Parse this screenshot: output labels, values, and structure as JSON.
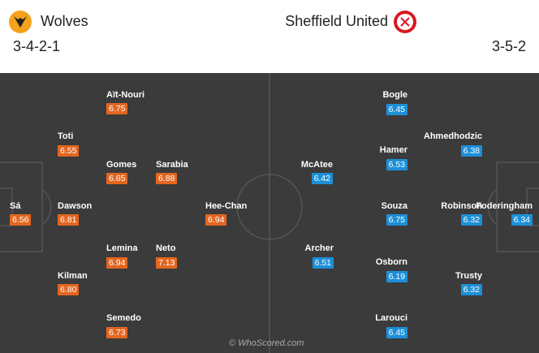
{
  "home": {
    "team": "Wolves",
    "formation": "3-4-2-1",
    "players": [
      {
        "name": "Sá",
        "rating": "6.56"
      },
      {
        "name": "Dawson",
        "rating": "6.81"
      },
      {
        "name": "Toti",
        "rating": "6.55"
      },
      {
        "name": "Kilman",
        "rating": "6.80"
      },
      {
        "name": "Aït-Nouri",
        "rating": "6.75"
      },
      {
        "name": "Gomes",
        "rating": "6.65"
      },
      {
        "name": "Sarabia",
        "rating": "6.88"
      },
      {
        "name": "Lemina",
        "rating": "6.94"
      },
      {
        "name": "Neto",
        "rating": "7.13"
      },
      {
        "name": "Semedo",
        "rating": "6.73"
      },
      {
        "name": "Hee-Chan",
        "rating": "6.94"
      }
    ]
  },
  "away": {
    "team": "Sheffield United",
    "formation": "3-5-2",
    "players": [
      {
        "name": "Foderingham",
        "rating": "6.34"
      },
      {
        "name": "Robinson",
        "rating": "6.32"
      },
      {
        "name": "Ahmedhodzic",
        "rating": "6.38"
      },
      {
        "name": "Trusty",
        "rating": "6.32"
      },
      {
        "name": "Bogle",
        "rating": "6.45"
      },
      {
        "name": "Hamer",
        "rating": "6.53"
      },
      {
        "name": "Souza",
        "rating": "6.75"
      },
      {
        "name": "Osborn",
        "rating": "6.19"
      },
      {
        "name": "Larouci",
        "rating": "6.45"
      },
      {
        "name": "McAtee",
        "rating": "6.42"
      },
      {
        "name": "Archer",
        "rating": "6.51"
      }
    ]
  },
  "watermark": "© WhoScored.com"
}
